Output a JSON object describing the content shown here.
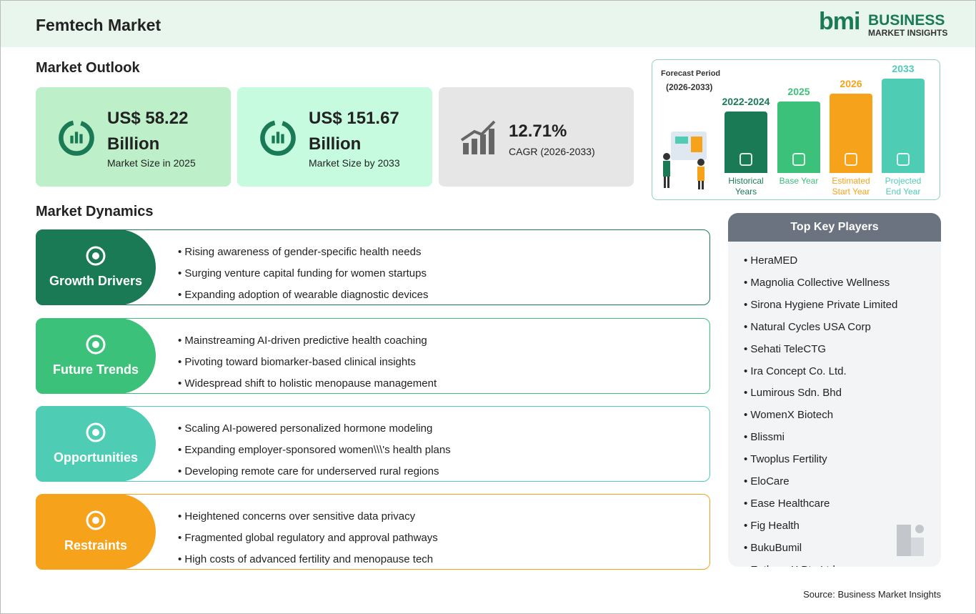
{
  "header": {
    "title": "Femtech Market",
    "logo_mark": "bmi",
    "logo_name": "BUSINESS",
    "logo_sub": "MARKET INSIGHTS"
  },
  "outlook": {
    "title": "Market Outlook",
    "cards": [
      {
        "value": "US$ 58.22 Billion",
        "label": "Market Size in 2025"
      },
      {
        "value": "US$ 151.67 Billion",
        "label": "Market Size by 2033"
      },
      {
        "value": "12.71%",
        "label": "CAGR (2026-2033)"
      }
    ]
  },
  "forecast": {
    "label": "Forecast Period",
    "period": "(2026-2033)",
    "bars": [
      {
        "year": "2022-2024",
        "label": "Historical Years"
      },
      {
        "year": "2025",
        "label": "Base Year"
      },
      {
        "year": "2026",
        "label": "Estimated Start Year"
      },
      {
        "year": "2033",
        "label": "Projected End Year"
      }
    ]
  },
  "dynamics": {
    "title": "Market Dynamics",
    "sections": [
      {
        "title": "Growth Drivers",
        "items": [
          "Rising awareness of gender-specific health needs",
          "Surging venture capital funding for women startups",
          "Expanding adoption of wearable diagnostic devices"
        ]
      },
      {
        "title": "Future Trends",
        "items": [
          "Mainstreaming AI-driven predictive health coaching",
          "Pivoting toward biomarker-based clinical insights",
          "Widespread shift to holistic menopause management"
        ]
      },
      {
        "title": "Opportunities",
        "items": [
          "Scaling AI-powered personalized hormone modeling",
          "Expanding employer-sponsored women\\\\\\'s health plans",
          "Developing remote care for underserved rural regions"
        ]
      },
      {
        "title": "Restraints",
        "items": [
          "Heightened concerns over sensitive data privacy",
          "Fragmented global regulatory and approval pathways",
          "High costs of advanced fertility and menopause tech"
        ]
      }
    ]
  },
  "players": {
    "title": "Top Key Players",
    "items": [
      "HeraMED",
      "Magnolia Collective Wellness",
      "Sirona Hygiene Private Limited",
      "Natural Cycles USA Corp",
      "Sehati TeleCTG",
      "Ira Concept Co. Ltd.",
      "Lumirous Sdn. Bhd",
      "WomenX Biotech",
      "Blissmi",
      "Twoplus Fertility",
      "EloCare",
      "Ease Healthcare",
      "Fig Health",
      "BukuBumil",
      "Euthera X Pte Ltd"
    ]
  },
  "source": "Source: Business Market Insights"
}
